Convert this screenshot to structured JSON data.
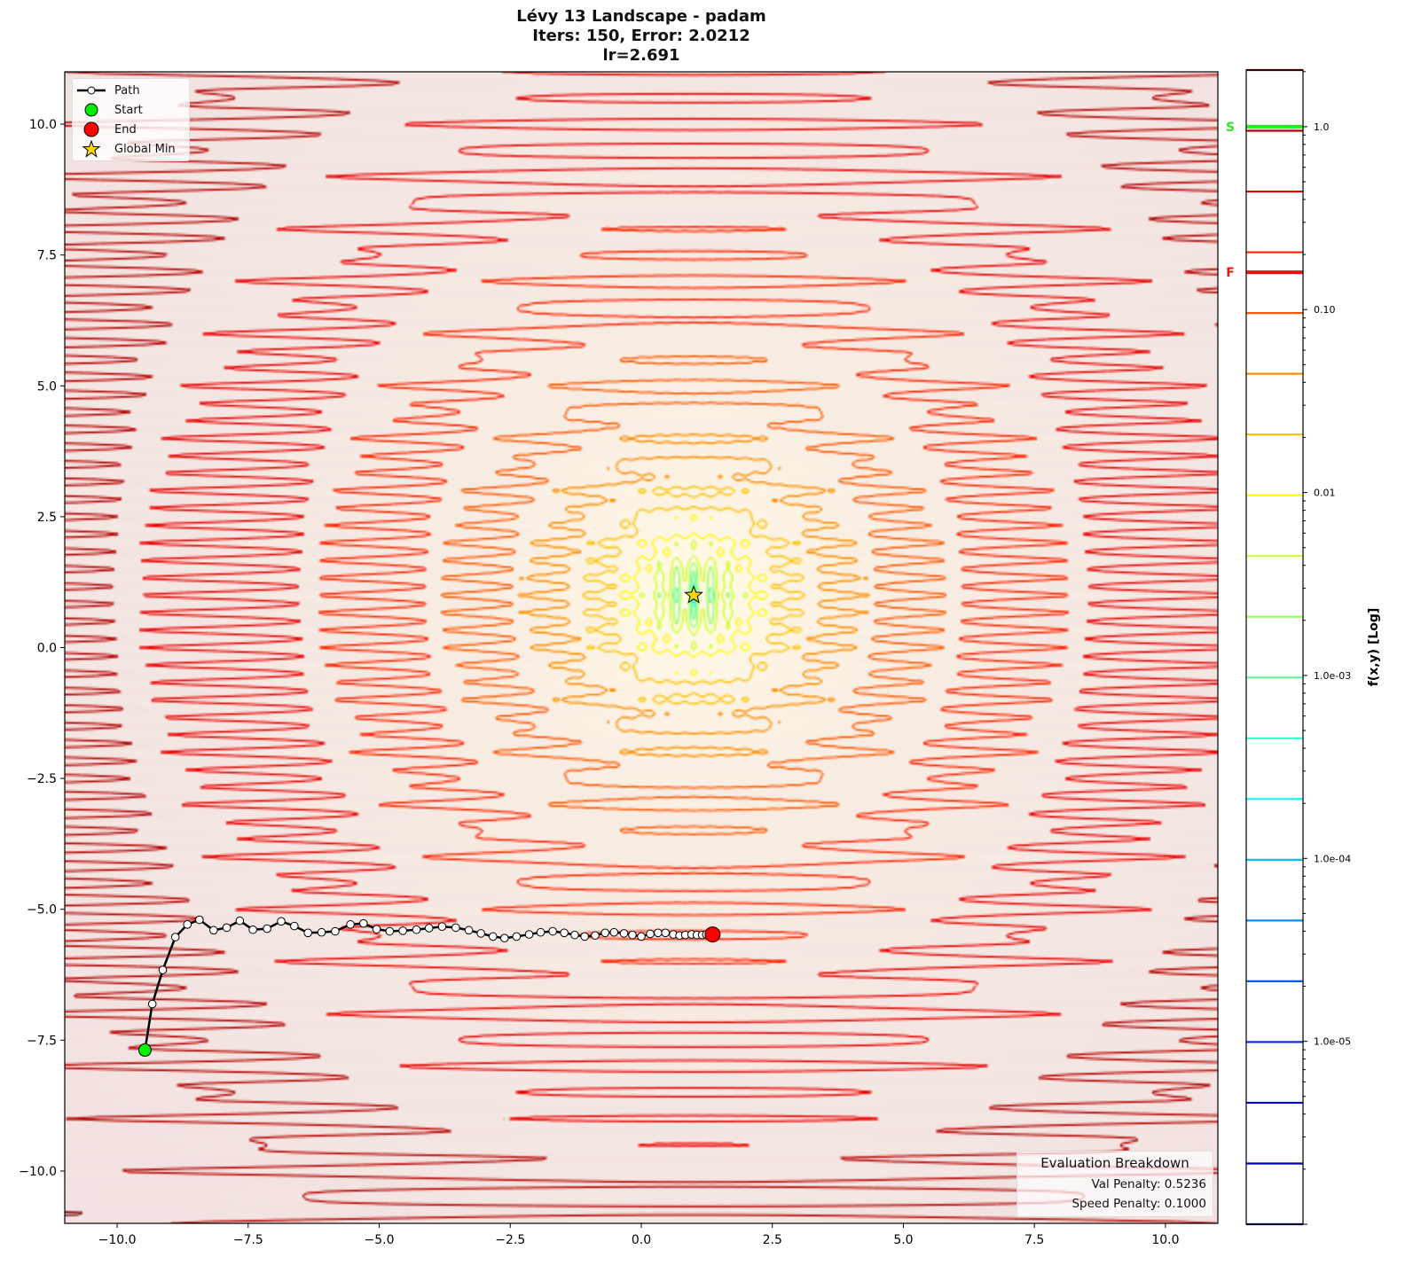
{
  "chart_data": {
    "type": "contour",
    "title": [
      "Lévy 13 Landscape - padam",
      "Iters: 150, Error: 2.0212",
      "lr=2.691"
    ],
    "xlim": [
      -11,
      11
    ],
    "ylim": [
      -11,
      11
    ],
    "x_ticks": [
      -10,
      -7.5,
      -5,
      -2.5,
      0,
      2.5,
      5,
      7.5,
      10
    ],
    "x_tick_labels": [
      "−10.0",
      "−7.5",
      "−5.0",
      "−2.5",
      "0.0",
      "2.5",
      "5.0",
      "7.5",
      "10.0"
    ],
    "y_ticks": [
      10,
      7.5,
      5,
      2.5,
      0,
      -2.5,
      -5,
      -7.5,
      -10
    ],
    "y_tick_labels": [
      "10.0",
      "7.5",
      "5.0",
      "2.5",
      "0.0",
      "−2.5",
      "−5.0",
      "−7.5",
      "−10.0"
    ],
    "grid": false,
    "function": "levy13",
    "colormap": "jet",
    "levels": {
      "scale": "log",
      "min": 1e-06,
      "max": 2.04,
      "count": 20
    },
    "colorbar": {
      "label": "f(x,y) [Log]",
      "ticks": [
        1.0,
        0.1,
        0.01,
        0.001,
        0.0001,
        1e-05
      ],
      "tick_labels": [
        "1.0",
        "0.10",
        "0.01",
        "1.0e-03",
        "1.0e-04",
        "1.0e-05"
      ],
      "markers": [
        {
          "label": "S",
          "value": 1.0,
          "color": "#22ee22"
        },
        {
          "label": "F",
          "value": 0.16,
          "color": "#ee1111"
        }
      ]
    },
    "path": {
      "name": "Path",
      "x": [
        -9.47,
        -9.33,
        -9.13,
        -8.89,
        -8.66,
        -8.43,
        -8.16,
        -7.91,
        -7.66,
        -7.41,
        -7.14,
        -6.87,
        -6.62,
        -6.36,
        -6.1,
        -5.84,
        -5.55,
        -5.3,
        -5.05,
        -4.8,
        -4.55,
        -4.29,
        -4.05,
        -3.8,
        -3.54,
        -3.29,
        -3.06,
        -2.83,
        -2.61,
        -2.38,
        -2.14,
        -1.92,
        -1.69,
        -1.47,
        -1.27,
        -1.08,
        -0.88,
        -0.69,
        -0.52,
        -0.33,
        -0.17,
        0.0,
        0.17,
        0.32,
        0.46,
        0.61,
        0.73,
        0.84,
        0.96,
        1.06,
        1.16,
        1.24,
        1.36
      ],
      "y": [
        -7.69,
        -6.81,
        -6.16,
        -5.53,
        -5.29,
        -5.2,
        -5.4,
        -5.35,
        -5.22,
        -5.39,
        -5.37,
        -5.23,
        -5.32,
        -5.45,
        -5.44,
        -5.42,
        -5.29,
        -5.27,
        -5.38,
        -5.42,
        -5.41,
        -5.39,
        -5.36,
        -5.33,
        -5.35,
        -5.4,
        -5.46,
        -5.52,
        -5.55,
        -5.52,
        -5.48,
        -5.44,
        -5.42,
        -5.45,
        -5.49,
        -5.52,
        -5.5,
        -5.45,
        -5.44,
        -5.46,
        -5.49,
        -5.52,
        -5.47,
        -5.45,
        -5.45,
        -5.48,
        -5.5,
        -5.49,
        -5.48,
        -5.49,
        -5.49,
        -5.48,
        -5.48
      ]
    },
    "start": {
      "name": "Start",
      "x": -9.47,
      "y": -7.69,
      "color": "#00ee00"
    },
    "end": {
      "name": "End",
      "x": 1.36,
      "y": -5.48,
      "color": "#ff0000"
    },
    "global_min": {
      "name": "Global Min",
      "x": 1,
      "y": 1,
      "color": "#ffd700"
    },
    "legend": {
      "position": "top-left",
      "entries": [
        "Path",
        "Start",
        "End",
        "Global Min"
      ]
    }
  },
  "evaluation": {
    "title": "Evaluation Breakdown",
    "val_penalty": "Val Penalty: 0.5236",
    "speed_penalty": "Speed Penalty: 0.1000"
  }
}
